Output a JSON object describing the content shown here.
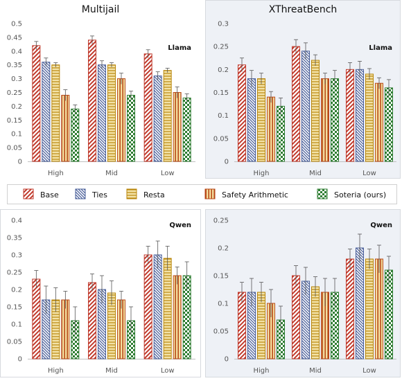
{
  "legend": [
    {
      "name": "Base",
      "color": "#c0392b",
      "pattern": "diag"
    },
    {
      "name": "Ties",
      "color": "#4a5f9a",
      "pattern": "anti"
    },
    {
      "name": "Resta",
      "color": "#b8860b",
      "pattern": "horiz"
    },
    {
      "name": "Safety Arithmetic",
      "color": "#b84a1a",
      "pattern": "vert"
    },
    {
      "name": "Soteria (ours)",
      "color": "#2e7d32",
      "pattern": "check"
    }
  ],
  "chart_data": [
    {
      "type": "bar",
      "title": "Multijail",
      "model": "Llama",
      "categories": [
        "High",
        "Mid",
        "Low"
      ],
      "ylim": [
        0,
        0.5
      ],
      "yticks": [
        "0",
        "0.05",
        "0.1",
        "0.15",
        "0.2",
        "0.25",
        "0.3",
        "0.35",
        "0.4",
        "0.45",
        "0.5"
      ],
      "series": [
        {
          "name": "Base",
          "values": [
            0.42,
            0.44,
            0.39
          ],
          "errors": [
            0.015,
            0.015,
            0.015
          ]
        },
        {
          "name": "Ties",
          "values": [
            0.36,
            0.35,
            0.31
          ],
          "errors": [
            0.015,
            0.015,
            0.015
          ]
        },
        {
          "name": "Resta",
          "values": [
            0.35,
            0.35,
            0.33
          ],
          "errors": [
            0.008,
            0.008,
            0.008
          ]
        },
        {
          "name": "Safety Arithmetic",
          "values": [
            0.24,
            0.3,
            0.25
          ],
          "errors": [
            0.02,
            0.02,
            0.02
          ]
        },
        {
          "name": "Soteria (ours)",
          "values": [
            0.19,
            0.24,
            0.23
          ],
          "errors": [
            0.015,
            0.015,
            0.015
          ]
        }
      ]
    },
    {
      "type": "bar",
      "title": "XThreatBench",
      "model": "Llama",
      "categories": [
        "High",
        "Mid",
        "Low"
      ],
      "ylim": [
        0,
        0.3
      ],
      "yticks": [
        "0",
        "0.05",
        "0.1",
        "0.15",
        "0.2",
        "0.25",
        "0.3"
      ],
      "series": [
        {
          "name": "Base",
          "values": [
            0.21,
            0.25,
            0.2
          ],
          "errors": [
            0.015,
            0.015,
            0.015
          ]
        },
        {
          "name": "Ties",
          "values": [
            0.18,
            0.24,
            0.2
          ],
          "errors": [
            0.018,
            0.018,
            0.018
          ]
        },
        {
          "name": "Resta",
          "values": [
            0.18,
            0.22,
            0.19
          ],
          "errors": [
            0.012,
            0.012,
            0.012
          ]
        },
        {
          "name": "Safety Arithmetic",
          "values": [
            0.14,
            0.18,
            0.17
          ],
          "errors": [
            0.012,
            0.012,
            0.012
          ]
        },
        {
          "name": "Soteria (ours)",
          "values": [
            0.12,
            0.18,
            0.16
          ],
          "errors": [
            0.018,
            0.018,
            0.018
          ]
        }
      ]
    },
    {
      "type": "bar",
      "title": "",
      "model": "Qwen",
      "categories": [
        "High",
        "Mid",
        "Low"
      ],
      "ylim": [
        0,
        0.4
      ],
      "yticks": [
        "0",
        "0.05",
        "0.1",
        "0.15",
        "0.2",
        "0.25",
        "0.3",
        "0.35",
        "0.4"
      ],
      "series": [
        {
          "name": "Base",
          "values": [
            0.23,
            0.22,
            0.3
          ],
          "errors": [
            0.025,
            0.025,
            0.025
          ]
        },
        {
          "name": "Ties",
          "values": [
            0.17,
            0.2,
            0.3
          ],
          "errors": [
            0.04,
            0.04,
            0.04
          ]
        },
        {
          "name": "Resta",
          "values": [
            0.17,
            0.19,
            0.29
          ],
          "errors": [
            0.035,
            0.035,
            0.035
          ]
        },
        {
          "name": "Safety Arithmetic",
          "values": [
            0.17,
            0.17,
            0.24
          ],
          "errors": [
            0.025,
            0.025,
            0.025
          ]
        },
        {
          "name": "Soteria (ours)",
          "values": [
            0.11,
            0.11,
            0.24
          ],
          "errors": [
            0.04,
            0.04,
            0.04
          ]
        }
      ]
    },
    {
      "type": "bar",
      "title": "",
      "model": "Qwen",
      "categories": [
        "High",
        "Mid",
        "Low"
      ],
      "ylim": [
        0,
        0.25
      ],
      "yticks": [
        "0",
        "0.05",
        "0.1",
        "0.15",
        "0.2",
        "0.25"
      ],
      "series": [
        {
          "name": "Base",
          "values": [
            0.12,
            0.15,
            0.18
          ],
          "errors": [
            0.018,
            0.018,
            0.018
          ]
        },
        {
          "name": "Ties",
          "values": [
            0.12,
            0.14,
            0.2
          ],
          "errors": [
            0.025,
            0.025,
            0.025
          ]
        },
        {
          "name": "Resta",
          "values": [
            0.12,
            0.13,
            0.18
          ],
          "errors": [
            0.018,
            0.018,
            0.018
          ]
        },
        {
          "name": "Safety Arithmetic",
          "values": [
            0.1,
            0.12,
            0.18
          ],
          "errors": [
            0.025,
            0.025,
            0.025
          ]
        },
        {
          "name": "Soteria (ours)",
          "values": [
            0.07,
            0.12,
            0.16
          ],
          "errors": [
            0.025,
            0.025,
            0.025
          ]
        }
      ]
    }
  ]
}
